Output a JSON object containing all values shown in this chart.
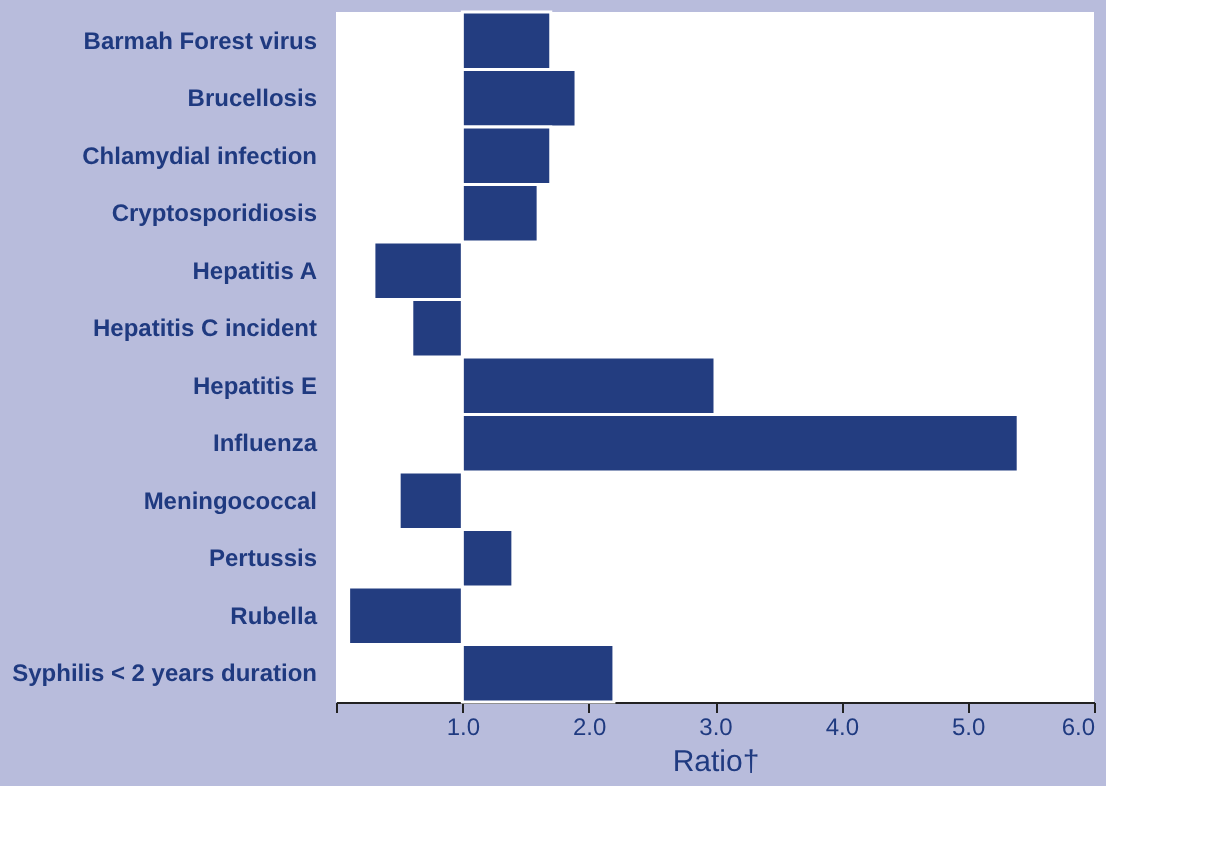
{
  "chart_data": {
    "type": "bar",
    "orientation": "horizontal",
    "xlabel": "Ratio†",
    "categories": [
      "Barmah Forest virus",
      "Brucellosis",
      "Chlamydial infection",
      "Cryptosporidiosis",
      "Hepatitis A",
      "Hepatitis C incident",
      "Hepatitis E",
      "Influenza",
      "Meningococcal",
      "Pertussis",
      "Rubella",
      "Syphilis < 2 years duration"
    ],
    "base": [
      1,
      1,
      1,
      1,
      1,
      1,
      1,
      1,
      1,
      1,
      1,
      1
    ],
    "values": [
      0.7,
      0.9,
      0.7,
      0.6,
      -0.7,
      -0.4,
      2.0,
      4.4,
      -0.5,
      0.4,
      -0.9,
      1.2
    ],
    "color": "#233d80",
    "xlim": [
      0,
      6
    ],
    "xticks": [
      {
        "value": 0,
        "label": null
      },
      {
        "value": 1,
        "label": "1.0"
      },
      {
        "value": 2,
        "label": "2.0"
      },
      {
        "value": 3,
        "label": "3.0"
      },
      {
        "value": 4,
        "label": "4.0"
      },
      {
        "value": 5,
        "label": "5.0"
      },
      {
        "value": 6,
        "label": "6.0"
      }
    ],
    "grid": false
  }
}
